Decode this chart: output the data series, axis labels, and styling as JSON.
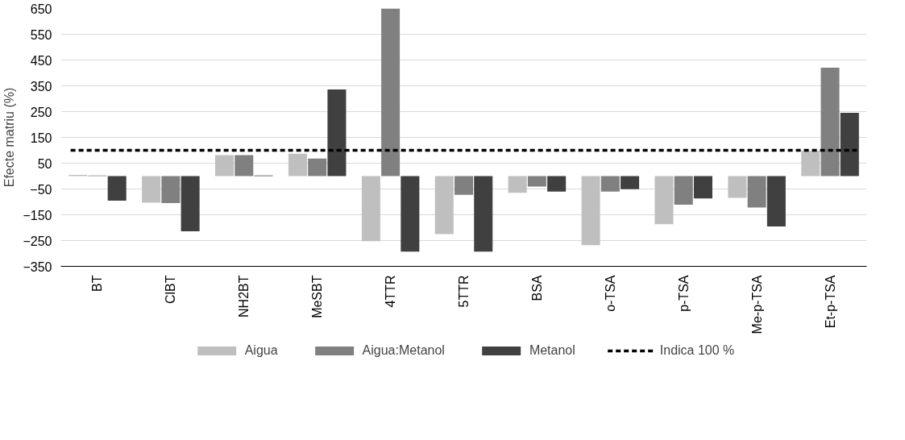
{
  "chart_data": {
    "type": "bar",
    "ylabel": "Efecte matriu (%)",
    "categories": [
      "BT",
      "ClBT",
      "NH2BT",
      "MeSBT",
      "4TTR",
      "5TTR",
      "BSA",
      "o-TSA",
      "p-TSA",
      "Me-p-TSA",
      "Et-p-TSA"
    ],
    "series": [
      {
        "name": "Aigua",
        "color": "#bfbfbf",
        "values": [
          5,
          -103,
          81,
          87,
          -252,
          -225,
          -65,
          -268,
          -187,
          -84,
          98
        ]
      },
      {
        "name": "Aigua:Metanol",
        "color": "#808080",
        "values": [
          2,
          -105,
          81,
          68,
          650,
          -73,
          -41,
          -60,
          -111,
          -122,
          420
        ]
      },
      {
        "name": "Metanol",
        "color": "#404040",
        "values": [
          -95,
          -214,
          2,
          336,
          -293,
          -293,
          -60,
          -51,
          -87,
          -195,
          245
        ]
      }
    ],
    "ref_lines": [
      {
        "axis": "y",
        "value": 100,
        "label": "Indica 100 %",
        "color": "#000000",
        "line_style": "dashed"
      }
    ],
    "ylim": [
      -350,
      650
    ],
    "yticks": [
      -350,
      -250,
      -150,
      -50,
      50,
      150,
      250,
      350,
      450,
      550,
      650
    ],
    "grid": "y",
    "legend": "bottom"
  }
}
